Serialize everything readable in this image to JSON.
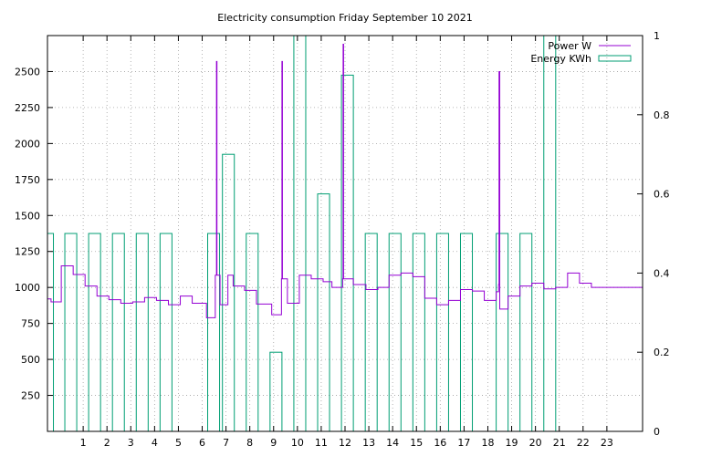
{
  "chart_data": {
    "type": "line",
    "title": "Electricity consumption Friday September 10 2021",
    "xlabel": "",
    "ylabel": "",
    "x_range": [
      -0.5,
      24.5
    ],
    "x_ticks": [
      1,
      2,
      3,
      4,
      5,
      6,
      7,
      8,
      9,
      10,
      11,
      12,
      13,
      14,
      15,
      16,
      17,
      18,
      19,
      20,
      21,
      22,
      23
    ],
    "y_left_range": [
      0,
      2750
    ],
    "y_left_ticks": [
      250,
      500,
      750,
      1000,
      1250,
      1500,
      1750,
      2000,
      2250,
      2500
    ],
    "y_right_range": [
      0,
      1
    ],
    "y_right_ticks": [
      0,
      0.2,
      0.4,
      0.6,
      0.8,
      1
    ],
    "grid": true,
    "legend_position": "top-right",
    "series": [
      {
        "name": "Power W",
        "color": "#9400d3",
        "axis": "left",
        "style": "steps",
        "points": [
          [
            -0.5,
            920
          ],
          [
            -0.35,
            900
          ],
          [
            0.08,
            1150
          ],
          [
            0.58,
            1090
          ],
          [
            1.08,
            1010
          ],
          [
            1.58,
            940
          ],
          [
            2.08,
            915
          ],
          [
            2.58,
            890
          ],
          [
            3.08,
            900
          ],
          [
            3.58,
            930
          ],
          [
            4.08,
            910
          ],
          [
            4.58,
            880
          ],
          [
            5.08,
            940
          ],
          [
            5.58,
            890
          ],
          [
            6.18,
            790
          ],
          [
            6.55,
            1085
          ],
          [
            6.6,
            2570
          ],
          [
            6.62,
            1085
          ],
          [
            6.75,
            880
          ],
          [
            7.08,
            1085
          ],
          [
            7.3,
            1010
          ],
          [
            7.78,
            980
          ],
          [
            8.28,
            885
          ],
          [
            8.92,
            810
          ],
          [
            9.33,
            1060
          ],
          [
            9.35,
            2570
          ],
          [
            9.37,
            1060
          ],
          [
            9.58,
            890
          ],
          [
            10.08,
            1085
          ],
          [
            10.58,
            1060
          ],
          [
            11.08,
            1040
          ],
          [
            11.45,
            1000
          ],
          [
            11.9,
            1060
          ],
          [
            11.92,
            2690
          ],
          [
            11.94,
            1060
          ],
          [
            12.35,
            1020
          ],
          [
            12.88,
            985
          ],
          [
            13.38,
            1000
          ],
          [
            13.85,
            1085
          ],
          [
            14.35,
            1100
          ],
          [
            14.85,
            1075
          ],
          [
            15.35,
            925
          ],
          [
            15.85,
            880
          ],
          [
            16.35,
            910
          ],
          [
            16.85,
            985
          ],
          [
            17.35,
            975
          ],
          [
            17.85,
            910
          ],
          [
            18.35,
            970
          ],
          [
            18.45,
            1020
          ],
          [
            18.47,
            2500
          ],
          [
            18.5,
            850
          ],
          [
            18.85,
            940
          ],
          [
            19.35,
            1010
          ],
          [
            19.85,
            1030
          ],
          [
            20.35,
            990
          ],
          [
            20.85,
            1000
          ],
          [
            21.35,
            1100
          ],
          [
            21.85,
            1030
          ],
          [
            22.35,
            1000
          ],
          [
            24.5,
            1000
          ]
        ]
      },
      {
        "name": "Energy KWh",
        "color": "#009e73",
        "axis": "right",
        "style": "impulses_boxes",
        "boxes": [
          {
            "x0": -0.5,
            "x1": -0.25,
            "value": 0.5
          },
          {
            "x0": 0.23,
            "x1": 0.73,
            "value": 0.5
          },
          {
            "x0": 1.23,
            "x1": 1.73,
            "value": 0.5
          },
          {
            "x0": 2.23,
            "x1": 2.73,
            "value": 0.5
          },
          {
            "x0": 3.23,
            "x1": 3.73,
            "value": 0.5
          },
          {
            "x0": 4.23,
            "x1": 4.73,
            "value": 0.5
          },
          {
            "x0": 6.23,
            "x1": 6.73,
            "value": 0.5
          },
          {
            "x0": 6.85,
            "x1": 7.35,
            "value": 0.7
          },
          {
            "x0": 7.85,
            "x1": 8.35,
            "value": 0.5
          },
          {
            "x0": 8.85,
            "x1": 9.35,
            "value": 0.2
          },
          {
            "x0": 9.85,
            "x1": 10.35,
            "value": 1.0
          },
          {
            "x0": 10.85,
            "x1": 11.35,
            "value": 0.6
          },
          {
            "x0": 11.85,
            "x1": 12.35,
            "value": 0.9
          },
          {
            "x0": 12.85,
            "x1": 13.35,
            "value": 0.5
          },
          {
            "x0": 13.85,
            "x1": 14.35,
            "value": 0.5
          },
          {
            "x0": 14.85,
            "x1": 15.35,
            "value": 0.5
          },
          {
            "x0": 15.85,
            "x1": 16.35,
            "value": 0.5
          },
          {
            "x0": 16.85,
            "x1": 17.35,
            "value": 0.5
          },
          {
            "x0": 18.35,
            "x1": 18.85,
            "value": 0.5
          },
          {
            "x0": 19.35,
            "x1": 19.85,
            "value": 0.5
          },
          {
            "x0": 20.35,
            "x1": 20.85,
            "value": 1.0
          }
        ]
      }
    ]
  }
}
